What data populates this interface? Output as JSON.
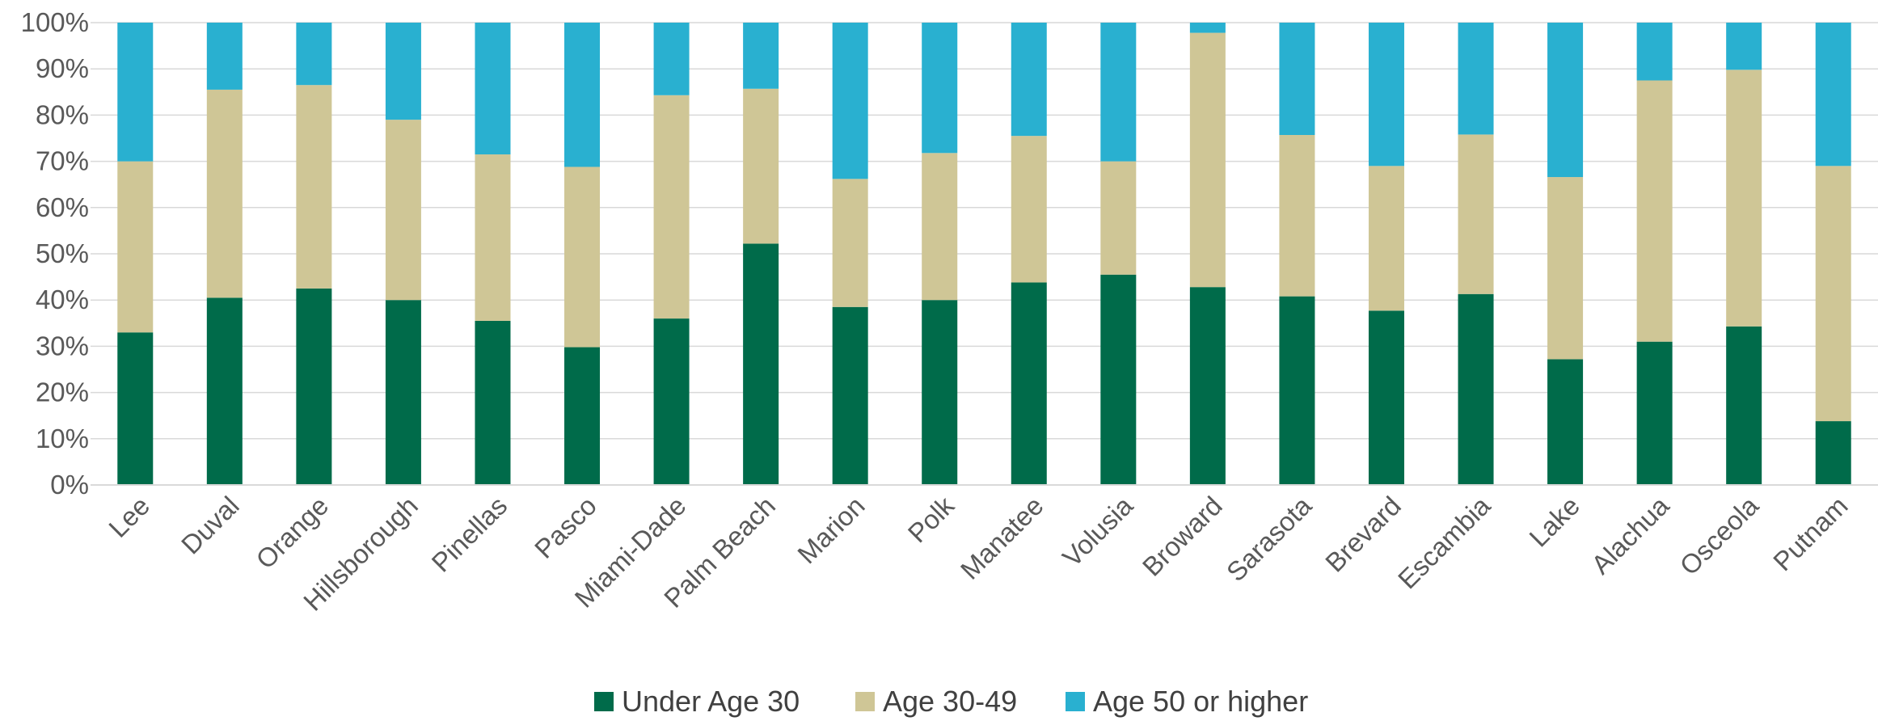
{
  "chart_data": {
    "type": "bar",
    "stacked": true,
    "percent_stacked": true,
    "categories": [
      "Lee",
      "Duval",
      "Orange",
      "Hillsborough",
      "Pinellas",
      "Pasco",
      "Miami-Dade",
      "Palm Beach",
      "Marion",
      "Polk",
      "Manatee",
      "Volusia",
      "Broward",
      "Sarasota",
      "Brevard",
      "Escambia",
      "Lake",
      "Alachua",
      "Osceola",
      "Putnam"
    ],
    "series": [
      {
        "name": "Under Age 30",
        "color": "#006B4A",
        "values": [
          33,
          40.5,
          42.5,
          40,
          35.5,
          29.8,
          36,
          52.2,
          38.5,
          40,
          43.8,
          45.5,
          42.8,
          40.8,
          37.7,
          41.3,
          27.2,
          31,
          34.3,
          13.8
        ]
      },
      {
        "name": "Age 30-49",
        "color": "#CFC696",
        "values": [
          37,
          45,
          44,
          39,
          36,
          39,
          48.3,
          33.5,
          27.7,
          31.8,
          31.7,
          24.5,
          55,
          34.9,
          31.3,
          34.5,
          39.4,
          56.5,
          55.5,
          55.2
        ]
      },
      {
        "name": "Age 50 or higher",
        "color": "#29B0D0",
        "values": [
          30,
          14.5,
          13.5,
          21,
          28.5,
          31.2,
          15.7,
          14.3,
          33.8,
          28.2,
          24.5,
          30,
          2.2,
          24.3,
          31,
          24.2,
          33.4,
          12.5,
          10.2,
          31
        ]
      }
    ],
    "yticks": [
      "0%",
      "10%",
      "20%",
      "30%",
      "40%",
      "50%",
      "60%",
      "70%",
      "80%",
      "90%",
      "100%"
    ],
    "ylim": [
      0,
      100
    ],
    "grid": true,
    "gridColor": "#D9D9D9",
    "legend": "bottom"
  }
}
